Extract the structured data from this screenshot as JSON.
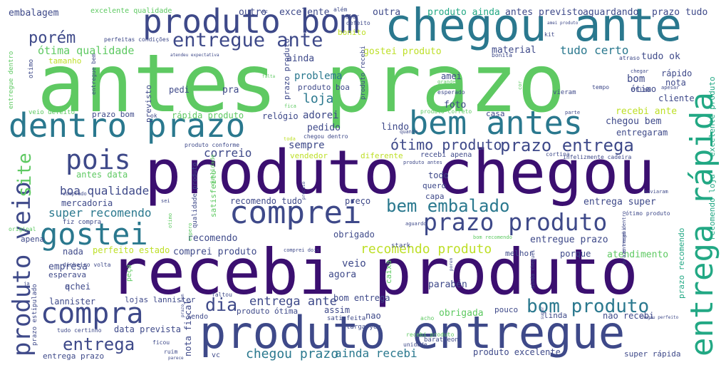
{
  "words": [
    {
      "text": "antes prazo",
      "color": "#5ec962"
    },
    {
      "text": "produto chegou",
      "color": "#3b0f70"
    },
    {
      "text": "recebi produto",
      "color": "#3b0f70"
    },
    {
      "text": "produto entregue",
      "color": "#3e4989"
    },
    {
      "text": "chegou ante",
      "color": "#2a788e"
    },
    {
      "text": "produto bom",
      "color": "#3e4989"
    },
    {
      "text": "dentro prazo",
      "color": "#2a788e"
    },
    {
      "text": "bem antes",
      "color": "#2a788e"
    },
    {
      "text": "comprei",
      "color": "#3e4989"
    },
    {
      "text": "compra",
      "color": "#3e4989"
    },
    {
      "text": "gostei",
      "color": "#2a788e"
    },
    {
      "text": "entrega rápida",
      "color": "#22a884"
    },
    {
      "text": "prazo produto",
      "color": "#3e4989"
    },
    {
      "text": "pois",
      "color": "#3e4989"
    },
    {
      "text": "produto veio",
      "color": "#3e4989"
    },
    {
      "text": "bom produto",
      "color": "#2a788e"
    },
    {
      "text": "entrega",
      "color": "#3e4989"
    },
    {
      "text": "bem embalado",
      "color": "#2a788e"
    },
    {
      "text": "prazo entrega",
      "color": "#3e4989"
    },
    {
      "text": "entregue ante",
      "color": "#3e4989"
    },
    {
      "text": "ótimo produto",
      "color": "#3e4989"
    },
    {
      "text": "porém",
      "color": "#3e4989"
    },
    {
      "text": "dia",
      "color": "#3e4989"
    },
    {
      "text": "site",
      "color": "#5ec962"
    },
    {
      "text": "recomendo produto",
      "color": "#bddf26"
    },
    {
      "text": "entrega ante",
      "color": "#3e4989"
    },
    {
      "text": "chegou prazo",
      "color": "#2a788e"
    },
    {
      "text": "ainda recebi",
      "color": "#2a788e"
    },
    {
      "text": "super recomendo",
      "color": "#2a788e"
    },
    {
      "text": "boa qualidade",
      "color": "#3e4989"
    },
    {
      "text": "correio",
      "color": "#3e4989"
    },
    {
      "text": "loja",
      "color": "#2a788e"
    },
    {
      "text": "tudo certo",
      "color": "#2a788e"
    },
    {
      "text": "ótima qualidade",
      "color": "#5ec962"
    },
    {
      "text": "embalagem",
      "color": "#3e4989"
    },
    {
      "text": "excelente qualidade",
      "color": "#5ec962"
    },
    {
      "text": "outro",
      "color": "#3e4989"
    },
    {
      "text": "excelente",
      "color": "#3e4989"
    },
    {
      "text": "outra",
      "color": "#3e4989"
    },
    {
      "text": "produto ainda",
      "color": "#22a884"
    },
    {
      "text": "antes previsto",
      "color": "#3e4989"
    },
    {
      "text": "aguardando",
      "color": "#3e4989"
    },
    {
      "text": "prazo tudo",
      "color": "#3e4989"
    },
    {
      "text": "gostei produto",
      "color": "#bddf26"
    },
    {
      "text": "material",
      "color": "#3e4989"
    },
    {
      "text": "tudo ok",
      "color": "#3e4989"
    },
    {
      "text": "problema",
      "color": "#2a788e"
    },
    {
      "text": "adorei",
      "color": "#3e4989"
    },
    {
      "text": "pedido",
      "color": "#3e4989"
    },
    {
      "text": "sempre",
      "color": "#3e4989"
    },
    {
      "text": "recebi ante",
      "color": "#bddf26"
    },
    {
      "text": "chegou bem",
      "color": "#3e4989"
    },
    {
      "text": "entregaram",
      "color": "#3e4989"
    },
    {
      "text": "prazo bom",
      "color": "#3e4989"
    },
    {
      "text": "rápida produto",
      "color": "#5ec962"
    },
    {
      "text": "relógio",
      "color": "#3e4989"
    },
    {
      "text": "lindo",
      "color": "#3e4989"
    },
    {
      "text": "foto",
      "color": "#3e4989"
    },
    {
      "text": "casa",
      "color": "#3e4989"
    },
    {
      "text": "amei",
      "color": "#3e4989"
    },
    {
      "text": "bom",
      "color": "#3e4989"
    },
    {
      "text": "nota",
      "color": "#3e4989"
    },
    {
      "text": "ótimo",
      "color": "#3e4989"
    },
    {
      "text": "cliente",
      "color": "#3e4989"
    },
    {
      "text": "rápido",
      "color": "#3e4989"
    },
    {
      "text": "pedi",
      "color": "#3e4989"
    },
    {
      "text": "pra",
      "color": "#3e4989"
    },
    {
      "text": "ainda",
      "color": "#3e4989"
    },
    {
      "text": "antes data",
      "color": "#5ec962"
    },
    {
      "text": "mercadoria",
      "color": "#3e4989"
    },
    {
      "text": "todo",
      "color": "#3e4989"
    },
    {
      "text": "quero",
      "color": "#3e4989"
    },
    {
      "text": "capa",
      "color": "#3e4989"
    },
    {
      "text": "preço",
      "color": "#3e4989"
    },
    {
      "text": "recomendo tudo",
      "color": "#3e4989"
    },
    {
      "text": "recomendo",
      "color": "#3e4989"
    },
    {
      "text": "obrigado",
      "color": "#3e4989"
    },
    {
      "text": "entregue prazo",
      "color": "#3e4989"
    },
    {
      "text": "entrega super",
      "color": "#3e4989"
    },
    {
      "text": "comprei produto",
      "color": "#3e4989"
    },
    {
      "text": "perfeito estado",
      "color": "#bddf26"
    },
    {
      "text": "atendimento",
      "color": "#5ec962"
    },
    {
      "text": "porque",
      "color": "#3e4989"
    },
    {
      "text": "melhor",
      "color": "#3e4989"
    },
    {
      "text": "nada",
      "color": "#3e4989"
    },
    {
      "text": "empresa",
      "color": "#3e4989"
    },
    {
      "text": "veio",
      "color": "#3e4989"
    },
    {
      "text": "agora",
      "color": "#3e4989"
    },
    {
      "text": "caixa",
      "color": "#5ec962"
    },
    {
      "text": "achei",
      "color": "#3e4989"
    },
    {
      "text": "parabén",
      "color": "#3e4989"
    },
    {
      "text": "bom entrega",
      "color": "#3e4989"
    },
    {
      "text": "lannister",
      "color": "#3e4989"
    },
    {
      "text": "lojas lannister",
      "color": "#3e4989"
    },
    {
      "text": "assim",
      "color": "#3e4989"
    },
    {
      "text": "nao",
      "color": "#3e4989"
    },
    {
      "text": "obrigada",
      "color": "#5ec962"
    },
    {
      "text": "linda",
      "color": "#3e4989"
    },
    {
      "text": "nao recebi",
      "color": "#3e4989"
    },
    {
      "text": "data prevista",
      "color": "#3e4989"
    },
    {
      "text": "nota fiscal",
      "color": "#3e4989"
    },
    {
      "text": "produto ótima",
      "color": "#3e4989"
    },
    {
      "text": "esperava",
      "color": "#3e4989"
    },
    {
      "text": "apena",
      "color": "#3e4989"
    },
    {
      "text": "produto excelente",
      "color": "#3e4989"
    },
    {
      "text": "super rápida",
      "color": "#3e4989"
    },
    {
      "text": "entrega prazo",
      "color": "#3e4989"
    },
    {
      "text": "tamanho",
      "color": "#bddf26"
    },
    {
      "text": "bonito",
      "color": "#bddf26"
    },
    {
      "text": "cortina",
      "color": "#3e4989"
    },
    {
      "text": "vieram",
      "color": "#3e4989"
    },
    {
      "text": "vendedor",
      "color": "#bddf26"
    },
    {
      "text": "diferente",
      "color": "#bddf26"
    },
    {
      "text": "recebi apena",
      "color": "#3e4989"
    },
    {
      "text": "fiz compra",
      "color": "#3e4989"
    },
    {
      "text": "prazo recomendo",
      "color": "#22a884"
    },
    {
      "text": "recomendo loja",
      "color": "#22a884"
    },
    {
      "text": "excelente produto",
      "color": "#22a884"
    },
    {
      "text": "prazo estipulado",
      "color": "#3e4989"
    },
    {
      "text": "qualidade produto",
      "color": "#3e4989"
    },
    {
      "text": "satisfeito",
      "color": "#5ec962"
    },
    {
      "text": "previsto",
      "color": "#3e4989"
    },
    {
      "text": "prazo produto",
      "color": "#3e4989"
    },
    {
      "text": "produto recebi",
      "color": "#3e4989"
    },
    {
      "text": "produto boa",
      "color": "#3e4989"
    },
    {
      "text": "entregue bem",
      "color": "#3e4989"
    },
    {
      "text": "ótimo",
      "color": "#3e4989"
    },
    {
      "text": "entregue dentro",
      "color": "#5ec962"
    },
    {
      "text": "produto correto",
      "color": "#5ec962"
    },
    {
      "text": "vc",
      "color": "#3e4989"
    },
    {
      "text": "sendo",
      "color": "#3e4989"
    },
    {
      "text": "faltou",
      "color": "#3e4989"
    },
    {
      "text": "stark",
      "color": "#3e4989"
    },
    {
      "text": "targaryen",
      "color": "#3e4989"
    },
    {
      "text": "ainda cheguei",
      "color": "#3e4989"
    },
    {
      "text": "baratheon",
      "color": "#3e4989"
    },
    {
      "text": "pouco",
      "color": "#3e4989"
    },
    {
      "text": "q",
      "color": "#3e4989"
    },
    {
      "text": "peça",
      "color": "#5ec962"
    },
    {
      "text": "ruim",
      "color": "#3e4989"
    },
    {
      "text": "ficou",
      "color": "#3e4989"
    },
    {
      "text": "unidade",
      "color": "#3e4989"
    },
    {
      "text": "recebi produto",
      "color": "#5ec962"
    },
    {
      "text": "satisfeita",
      "color": "#3e4989"
    },
    {
      "text": "acho",
      "color": "#5ec962"
    },
    {
      "text": "entrega dentro",
      "color": "#3e4989"
    },
    {
      "text": "prazo recebi",
      "color": "#3e4989"
    },
    {
      "text": "grande",
      "color": "#5ec962"
    },
    {
      "text": "esperado",
      "color": "#3e4989"
    },
    {
      "text": "tempo",
      "color": "#3e4989"
    },
    {
      "text": "apesar",
      "color": "#3e4989"
    },
    {
      "text": "chegar",
      "color": "#3e4989"
    },
    {
      "text": "atraso",
      "color": "#3e4989"
    },
    {
      "text": "bonita",
      "color": "#3e4989"
    },
    {
      "text": "kit",
      "color": "#3e4989"
    },
    {
      "text": "defeito",
      "color": "#3e4989"
    },
    {
      "text": "valor",
      "color": "#3e4989"
    },
    {
      "text": "além",
      "color": "#3e4989"
    },
    {
      "text": "veio defeito",
      "color": "#5ec962"
    },
    {
      "text": "perfeitas condições",
      "color": "#3e4989"
    },
    {
      "text": "otimo",
      "color": "#3e4989"
    },
    {
      "text": "enviaram",
      "color": "#3e4989"
    },
    {
      "text": "infelizmente cadeira",
      "color": "#3e4989"
    },
    {
      "text": "parte",
      "color": "#3e4989"
    },
    {
      "text": "fica",
      "color": "#5ec962"
    },
    {
      "text": "produto conforme",
      "color": "#3e4989"
    },
    {
      "text": "comprado",
      "color": "#3e4989"
    },
    {
      "text": "original",
      "color": "#5ec962"
    },
    {
      "text": "espero",
      "color": "#5ec962"
    },
    {
      "text": "aguardo",
      "color": "#3e4989"
    },
    {
      "text": "chegou dentro",
      "color": "#3e4989"
    },
    {
      "text": "toda",
      "color": "#bddf26"
    },
    {
      "text": "quanto",
      "color": "#3e4989"
    },
    {
      "text": "produto antes",
      "color": "#3e4989"
    },
    {
      "text": "tudo certinho",
      "color": "#3e4989"
    },
    {
      "text": "dinheiro volta",
      "color": "#3e4989"
    },
    {
      "text": "ótimo produto",
      "color": "#3e4989"
    },
    {
      "text": "bom recomendo",
      "color": "#5ec962"
    },
    {
      "text": "comprei dois",
      "color": "#3e4989"
    },
    {
      "text": "atendeu expectativa",
      "color": "#3e4989"
    },
    {
      "text": "ja",
      "color": "#3e4989"
    },
    {
      "text": "ok",
      "color": "#3e4989"
    },
    {
      "text": "vez",
      "color": "#3e4989"
    },
    {
      "text": "sei",
      "color": "#3e4989"
    },
    {
      "text": "falta",
      "color": "#5ec962"
    },
    {
      "text": "preciso",
      "color": "#3e4989"
    },
    {
      "text": "qualidade",
      "color": "#5ec962"
    },
    {
      "text": "cor",
      "color": "#5ec962"
    },
    {
      "text": "otimo",
      "color": "#5ec962"
    },
    {
      "text": "amei produto",
      "color": "#3e4989"
    },
    {
      "text": "porem",
      "color": "#3e4989"
    },
    {
      "text": "super",
      "color": "#3e4989"
    },
    {
      "text": "chegou perfeito",
      "color": "#3e4989"
    },
    {
      "text": "prazo bem",
      "color": "#3e4989"
    },
    {
      "text": "parece",
      "color": "#3e4989"
    }
  ]
}
